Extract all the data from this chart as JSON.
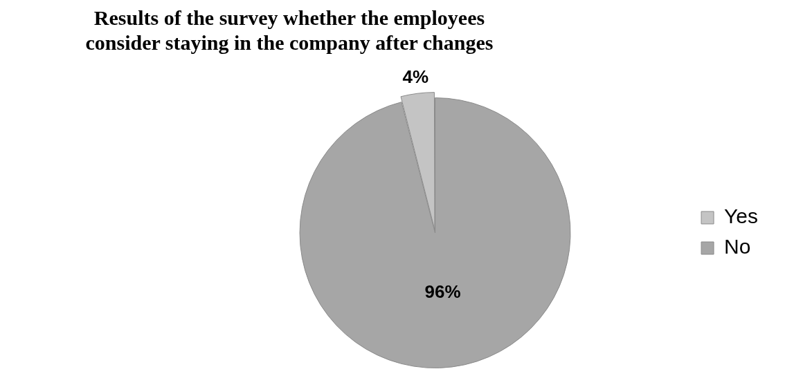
{
  "chart_data": {
    "type": "pie",
    "title": "Results of the survey whether the employees consider staying in the company after changes",
    "categories": [
      "Yes",
      "No"
    ],
    "values": [
      4,
      96
    ],
    "colors": [
      "#c4c4c4",
      "#a6a6a6"
    ],
    "value_labels": [
      "4%",
      "96%"
    ],
    "legend": "right"
  }
}
